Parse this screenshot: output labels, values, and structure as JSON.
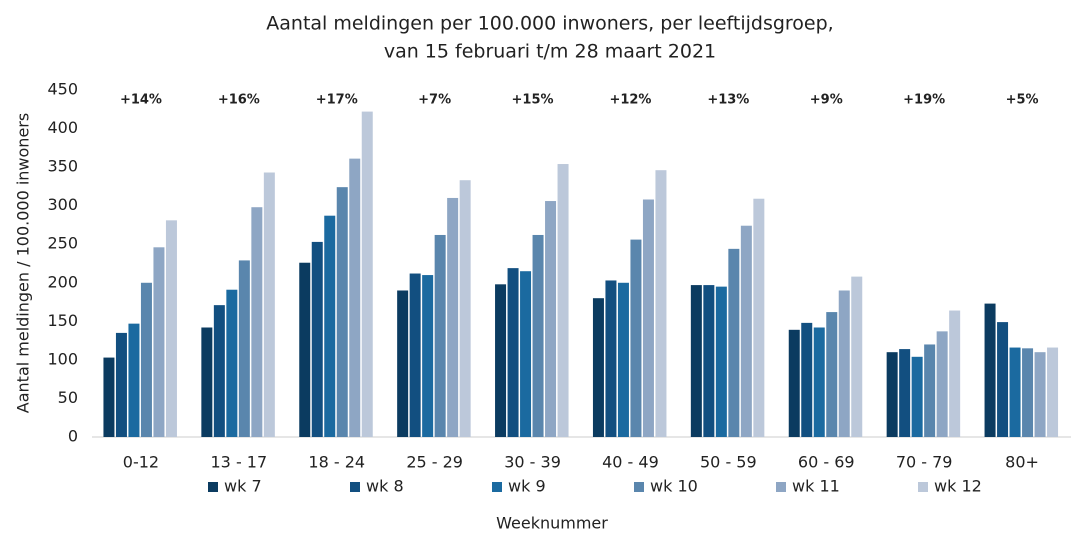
{
  "chart_data": {
    "type": "bar",
    "title": [
      "Aantal meldingen per 100.000 inwoners, per leeftijdsgroep,",
      "van 15 februari t/m 28 maart 2021"
    ],
    "y_label": "Aantal meldingen / 100.000 inwoners",
    "x_label": "Weeknummer",
    "categories": [
      "0-12",
      "13 - 17",
      "18 - 24",
      "25 - 29",
      "30 - 39",
      "40 - 49",
      "50 - 59",
      "60 - 69",
      "70 - 79",
      "80+"
    ],
    "annotations": [
      "+14%",
      "+16%",
      "+17%",
      "+7%",
      "+15%",
      "+12%",
      "+13%",
      "+9%",
      "+19%",
      "+5%"
    ],
    "series": [
      {
        "name": "wk 7",
        "color": "#0b3b60",
        "values": [
          103,
          142,
          226,
          190,
          198,
          180,
          197,
          139,
          110,
          173
        ]
      },
      {
        "name": "wk 8",
        "color": "#124f80",
        "values": [
          135,
          171,
          253,
          212,
          219,
          203,
          197,
          148,
          114,
          149
        ]
      },
      {
        "name": "wk 9",
        "color": "#1b6aa0",
        "values": [
          147,
          191,
          287,
          210,
          215,
          200,
          195,
          142,
          104,
          116
        ]
      },
      {
        "name": "wk 10",
        "color": "#5a86ad",
        "values": [
          200,
          229,
          324,
          262,
          262,
          256,
          244,
          162,
          120,
          115
        ]
      },
      {
        "name": "wk 11",
        "color": "#8ea6c4",
        "values": [
          246,
          298,
          361,
          310,
          306,
          308,
          274,
          190,
          137,
          110
        ]
      },
      {
        "name": "wk 12",
        "color": "#bcc8da",
        "values": [
          281,
          343,
          422,
          333,
          354,
          346,
          309,
          208,
          164,
          116
        ]
      }
    ],
    "ylim": [
      0,
      450
    ],
    "yticks": [
      0,
      50,
      100,
      150,
      200,
      250,
      300,
      350,
      400,
      450
    ],
    "grid": false,
    "legend": "bottom"
  }
}
